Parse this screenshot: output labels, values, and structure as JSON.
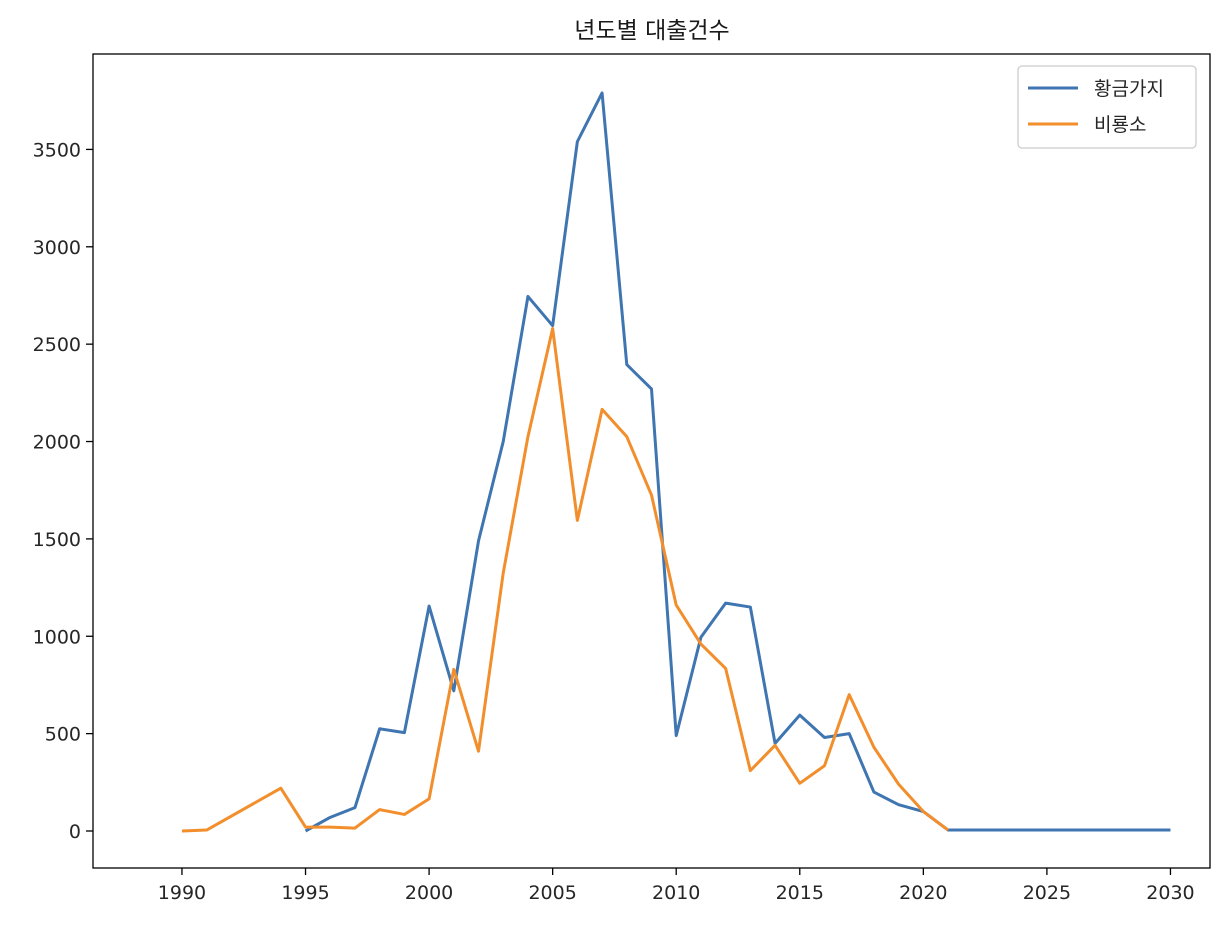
{
  "chart_data": {
    "type": "line",
    "title": "년도별 대출건수",
    "xlabel": "",
    "ylabel": "",
    "xlim": [
      1986.4,
      2031.6
    ],
    "ylim": [
      -190,
      3990
    ],
    "xticks": [
      1990,
      1995,
      2000,
      2005,
      2010,
      2015,
      2020,
      2025,
      2030
    ],
    "yticks": [
      0,
      500,
      1000,
      1500,
      2000,
      2500,
      3000,
      3500
    ],
    "grid": false,
    "legend_position": "top-right",
    "series": [
      {
        "name": "황금가지",
        "color": "#3f75b0",
        "x": [
          1995,
          1996,
          1997,
          1998,
          1999,
          2000,
          2001,
          2002,
          2003,
          2004,
          2005,
          2006,
          2007,
          2008,
          2009,
          2010,
          2011,
          2012,
          2013,
          2014,
          2015,
          2016,
          2017,
          2018,
          2019,
          2020,
          2021,
          2030
        ],
        "y": [
          0,
          70,
          120,
          525,
          505,
          1155,
          720,
          1490,
          2000,
          2745,
          2595,
          3540,
          3790,
          2395,
          2270,
          490,
          995,
          1170,
          1150,
          450,
          595,
          480,
          500,
          200,
          135,
          100,
          5,
          5
        ]
      },
      {
        "name": "비룡소",
        "color": "#f28e2b",
        "x": [
          1990,
          1991,
          1994,
          1995,
          1996,
          1997,
          1998,
          1999,
          2000,
          2001,
          2002,
          2003,
          2004,
          2005,
          2006,
          2007,
          2008,
          2009,
          2010,
          2011,
          2012,
          2013,
          2014,
          2015,
          2016,
          2017,
          2018,
          2019,
          2020,
          2021
        ],
        "y": [
          0,
          5,
          220,
          20,
          20,
          15,
          110,
          85,
          165,
          830,
          410,
          1325,
          2025,
          2580,
          1595,
          2165,
          2025,
          1725,
          1160,
          960,
          835,
          310,
          440,
          245,
          335,
          700,
          430,
          240,
          100,
          5
        ]
      }
    ]
  }
}
